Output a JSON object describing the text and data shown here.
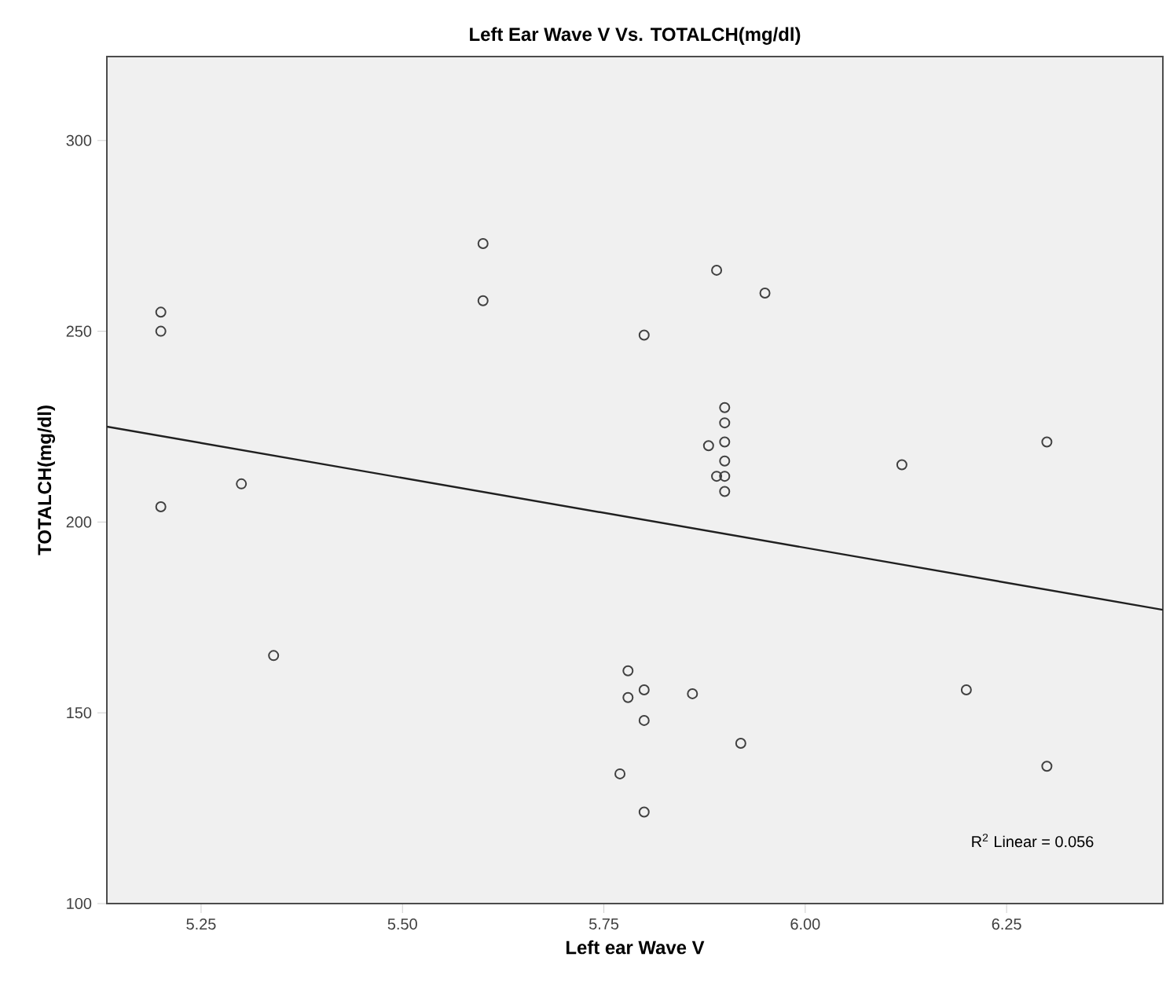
{
  "chart_data": {
    "type": "scatter",
    "title": "Left Ear Wave V Vs. TOTALCH(mg/dl)",
    "xlabel": "Left ear Wave V",
    "ylabel": "TOTALCH(mg/dl)",
    "xlim": [
      5.133,
      6.444
    ],
    "ylim": [
      100,
      322
    ],
    "xticks": [
      {
        "value": 5.25,
        "label": "5.25"
      },
      {
        "value": 5.5,
        "label": "5.50"
      },
      {
        "value": 5.75,
        "label": "5.75"
      },
      {
        "value": 6.0,
        "label": "6.00"
      },
      {
        "value": 6.25,
        "label": "6.25"
      }
    ],
    "yticks": [
      100,
      150,
      200,
      250,
      300
    ],
    "grid": false,
    "series": [
      {
        "color": "#404040",
        "marker": "circle",
        "x": [
          5.2,
          5.2,
          5.2,
          5.3,
          5.34,
          5.6,
          5.6,
          5.8,
          5.89,
          5.95,
          5.9,
          5.9,
          5.9,
          5.9,
          5.9,
          5.9,
          5.88,
          5.89,
          6.12,
          6.3,
          5.78,
          5.78,
          5.8,
          5.8,
          5.86,
          5.92,
          5.77,
          5.8,
          6.2,
          6.3
        ],
        "values": [
          255,
          250,
          204,
          210,
          165,
          273,
          258,
          249,
          266,
          260,
          230,
          226,
          221,
          216,
          212,
          208,
          220,
          212,
          215,
          221,
          161,
          154,
          156,
          148,
          155,
          142,
          134,
          124,
          156,
          136
        ]
      },
      {
        "type": "line",
        "color": "#202020",
        "marker": "none",
        "line_style": "solid",
        "x": [
          5.133,
          6.444
        ],
        "values": [
          225,
          177
        ]
      }
    ],
    "annotations": [
      "R$^{2}$ Linear = 0.056"
    ]
  }
}
